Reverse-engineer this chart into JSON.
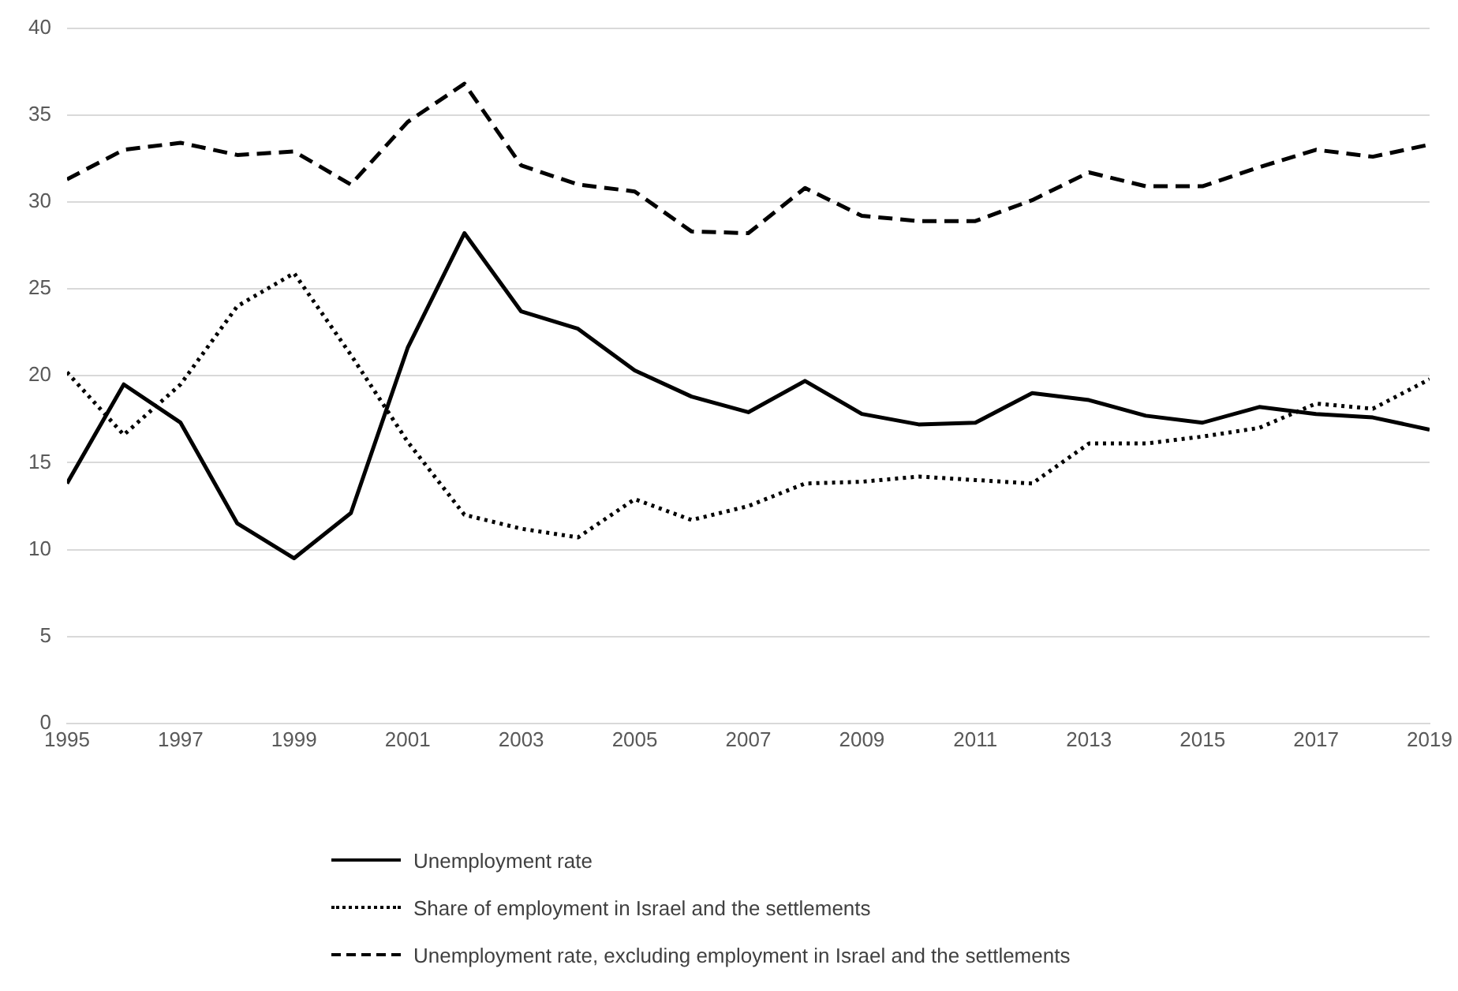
{
  "chart_data": {
    "type": "line",
    "x": [
      1995,
      1996,
      1997,
      1998,
      1999,
      2000,
      2001,
      2002,
      2003,
      2004,
      2005,
      2006,
      2007,
      2008,
      2009,
      2010,
      2011,
      2012,
      2013,
      2014,
      2015,
      2016,
      2017,
      2018,
      2019
    ],
    "xlim": [
      1995,
      2019
    ],
    "xticks": [
      1995,
      1997,
      1999,
      2001,
      2003,
      2005,
      2007,
      2009,
      2011,
      2013,
      2015,
      2017,
      2019
    ],
    "ylim": [
      0,
      40
    ],
    "yticks": [
      0,
      5,
      10,
      15,
      20,
      25,
      30,
      35,
      40
    ],
    "grid": "y",
    "legend": "bottom",
    "marker": "none",
    "series": [
      {
        "name": "Unemployment rate",
        "color": "#000000",
        "line_style": "solid",
        "values": [
          13.8,
          19.5,
          17.3,
          11.5,
          9.5,
          12.1,
          21.6,
          28.2,
          23.7,
          22.7,
          20.3,
          18.8,
          17.9,
          19.7,
          17.8,
          17.2,
          17.3,
          19.0,
          18.6,
          17.7,
          17.3,
          18.2,
          17.8,
          17.6,
          16.9
        ]
      },
      {
        "name": "Share of employment in Israel and the settlements",
        "color": "#000000",
        "line_style": "dotted",
        "values": [
          20.2,
          16.6,
          19.5,
          24.0,
          25.9,
          21.2,
          16.2,
          12.0,
          11.2,
          10.7,
          12.9,
          11.7,
          12.5,
          13.8,
          13.9,
          14.2,
          14.0,
          13.8,
          16.1,
          16.1,
          16.5,
          17.0,
          18.4,
          18.1,
          19.8
        ]
      },
      {
        "name": "Unemployment rate, excluding employment in Israel and the settlements",
        "color": "#000000",
        "line_style": "dashed",
        "values": [
          31.3,
          33.0,
          33.4,
          32.7,
          32.9,
          31.0,
          34.6,
          36.8,
          32.1,
          31.0,
          30.6,
          28.3,
          28.2,
          30.8,
          29.2,
          28.9,
          28.9,
          30.1,
          31.7,
          30.9,
          30.9,
          32.0,
          33.0,
          32.6,
          33.3
        ]
      }
    ]
  }
}
